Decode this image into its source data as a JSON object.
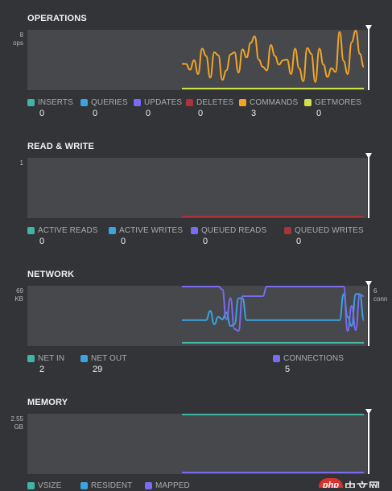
{
  "colors": {
    "teal": "#3fb5a3",
    "blue": "#3aa3e0",
    "purple": "#7a6cf0",
    "red": "#a8343a",
    "orange": "#f3a427",
    "lime": "#cfe14a"
  },
  "operations": {
    "title": "OPERATIONS",
    "y_max": "8",
    "y_unit": "ops",
    "legend": [
      {
        "label": "INSERTS",
        "value": "0",
        "color": "#3fb5a3",
        "icon": "teal-swatch"
      },
      {
        "label": "QUERIES",
        "value": "0",
        "color": "#3aa3e0",
        "icon": "blue-swatch"
      },
      {
        "label": "UPDATES",
        "value": "0",
        "color": "#7a6cf0",
        "icon": "purple-swatch"
      },
      {
        "label": "DELETES",
        "value": "0",
        "color": "#a8343a",
        "icon": "red-swatch"
      },
      {
        "label": "COMMANDS",
        "value": "3",
        "color": "#f3a427",
        "icon": "orange-swatch"
      },
      {
        "label": "GETMORES",
        "value": "0",
        "color": "#cfe14a",
        "icon": "lime-swatch"
      }
    ]
  },
  "read_write": {
    "title": "READ & WRITE",
    "y_max": "1",
    "legend": [
      {
        "label": "ACTIVE READS",
        "value": "0",
        "color": "#3fb5a3"
      },
      {
        "label": "ACTIVE WRITES",
        "value": "0",
        "color": "#3aa3e0"
      },
      {
        "label": "QUEUED READS",
        "value": "0",
        "color": "#7a6cf0"
      },
      {
        "label": "QUEUED WRITES",
        "value": "0",
        "color": "#a8343a"
      }
    ]
  },
  "network": {
    "title": "NETWORK",
    "y_max_left": "69",
    "y_unit_left": "KB",
    "y_max_right": "6",
    "y_unit_right": "conn",
    "legend": [
      {
        "label": "NET IN",
        "value": "2",
        "color": "#3fb5a3"
      },
      {
        "label": "NET OUT",
        "value": "29",
        "color": "#3aa3e0"
      },
      {
        "label": "CONNECTIONS",
        "value": "5",
        "color": "#7a6cf0"
      }
    ]
  },
  "memory": {
    "title": "MEMORY",
    "y_max": "2.55",
    "y_unit": "GB",
    "legend": [
      {
        "label": "VSIZE",
        "color": "#3fb5a3"
      },
      {
        "label": "RESIDENT",
        "color": "#3aa3e0"
      },
      {
        "label": "MAPPED",
        "color": "#7a6cf0"
      }
    ]
  },
  "watermark": {
    "badge": "php",
    "text": "中文网"
  },
  "chart_data": [
    {
      "type": "line",
      "title": "OPERATIONS",
      "ylim": [
        0,
        8
      ],
      "ylabel": "ops",
      "series": [
        {
          "name": "COMMANDS",
          "color": "#f3a427",
          "values": [
            3.4,
            3.4,
            2.6,
            3.9,
            2.0,
            5.5,
            4.5,
            1.5,
            5.0,
            4.6,
            1.2,
            2.5,
            4.7,
            5.0,
            2.2,
            5.4,
            4.3,
            6.3,
            7.2,
            4.0,
            3.0,
            2.5,
            6.0,
            4.5,
            3.3,
            3.9,
            4.0,
            2.0,
            5.5,
            2.8,
            1.0,
            5.6,
            4.8,
            0.9,
            5.5,
            3.3,
            1.6,
            2.8,
            2.3,
            7.8,
            3.8,
            2.0,
            6.4,
            8.0,
            4.8,
            3.0
          ]
        },
        {
          "name": "GETMORES",
          "color": "#cfe14a",
          "values": [
            0,
            0,
            0,
            0,
            0,
            0,
            0,
            0,
            0,
            0,
            0,
            0,
            0,
            0,
            0,
            0,
            0,
            0,
            0,
            0,
            0,
            0,
            0,
            0,
            0,
            0,
            0,
            0,
            0,
            0,
            0,
            0,
            0,
            0,
            0,
            0,
            0,
            0,
            0,
            0,
            0,
            0,
            0,
            0,
            0,
            0
          ]
        }
      ]
    },
    {
      "type": "line",
      "title": "READ & WRITE",
      "ylim": [
        0,
        1
      ],
      "series": [
        {
          "name": "QUEUED WRITES",
          "color": "#a8343a",
          "values": [
            0,
            0,
            0,
            0,
            0,
            0,
            0,
            0,
            0,
            0,
            0,
            0,
            0,
            0,
            0,
            0,
            0,
            0,
            0,
            0,
            0,
            0,
            0,
            0,
            0,
            0,
            0,
            0,
            0,
            0,
            0,
            0,
            0,
            0,
            0,
            0,
            0,
            0,
            0,
            0,
            0,
            0,
            0,
            0,
            0,
            0
          ]
        }
      ]
    },
    {
      "type": "line",
      "title": "NETWORK",
      "ylim": [
        0,
        69
      ],
      "ylabel": "KB",
      "series": [
        {
          "name": "NET OUT",
          "color": "#3aa3e0",
          "values": [
            29,
            29,
            29,
            29,
            29,
            29,
            29,
            40,
            24,
            33,
            30,
            38,
            22,
            24,
            55,
            55,
            29,
            29,
            29,
            29,
            29,
            29,
            29,
            29,
            29,
            29,
            29,
            29,
            29,
            29,
            29,
            29,
            29,
            29,
            29,
            29,
            29,
            29,
            29,
            29,
            60,
            33,
            22,
            60,
            60,
            29
          ]
        },
        {
          "name": "NET IN",
          "color": "#3fb5a3",
          "values": [
            2,
            2,
            2,
            2,
            2,
            2,
            2,
            2,
            2,
            2,
            2,
            2,
            2,
            2,
            2,
            2,
            2,
            2,
            2,
            2,
            2,
            2,
            2,
            2,
            2,
            2,
            2,
            2,
            2,
            2,
            2,
            2,
            2,
            2,
            2,
            2,
            2,
            2,
            2,
            2,
            2,
            2,
            2,
            2,
            2,
            2
          ]
        }
      ]
    },
    {
      "type": "line",
      "title": "NETWORK",
      "ylim": [
        0,
        6
      ],
      "ylabel": "conn",
      "series": [
        {
          "name": "CONNECTIONS",
          "color": "#7a6cf0",
          "values": [
            6,
            6,
            6,
            6,
            6,
            6,
            6,
            6,
            6,
            6,
            5.7,
            2.6,
            4.8,
            1.6,
            1.4,
            5.0,
            5.0,
            5.0,
            5.0,
            5.0,
            5.0,
            6,
            6,
            6,
            6,
            6,
            6,
            6,
            6,
            6,
            6,
            6,
            6,
            6,
            6,
            6,
            6,
            6,
            6,
            6,
            6,
            1.4,
            4.0,
            1.5,
            5.2,
            5.0
          ]
        }
      ]
    },
    {
      "type": "line",
      "title": "MEMORY",
      "ylim": [
        0,
        2.55
      ],
      "ylabel": "GB",
      "series": [
        {
          "name": "VSIZE",
          "color": "#3fb5a3",
          "values": [
            2.55,
            2.55,
            2.55,
            2.55,
            2.55,
            2.55,
            2.55,
            2.55,
            2.55,
            2.55,
            2.55,
            2.55,
            2.55,
            2.55,
            2.55,
            2.55,
            2.55,
            2.55,
            2.55,
            2.55,
            2.55,
            2.55,
            2.55,
            2.55,
            2.55,
            2.55,
            2.55,
            2.55,
            2.55,
            2.55,
            2.55,
            2.55,
            2.55,
            2.55,
            2.55,
            2.55,
            2.55,
            2.55,
            2.55,
            2.55,
            2.55,
            2.55,
            2.55,
            2.55,
            2.55,
            2.55
          ]
        },
        {
          "name": "MAPPED",
          "color": "#7a6cf0",
          "values": [
            0,
            0,
            0,
            0,
            0,
            0,
            0,
            0,
            0,
            0,
            0,
            0,
            0,
            0,
            0,
            0,
            0,
            0,
            0,
            0,
            0,
            0,
            0,
            0,
            0,
            0,
            0,
            0,
            0,
            0,
            0,
            0,
            0,
            0,
            0,
            0,
            0,
            0,
            0,
            0,
            0,
            0,
            0,
            0,
            0,
            0
          ]
        }
      ]
    }
  ]
}
